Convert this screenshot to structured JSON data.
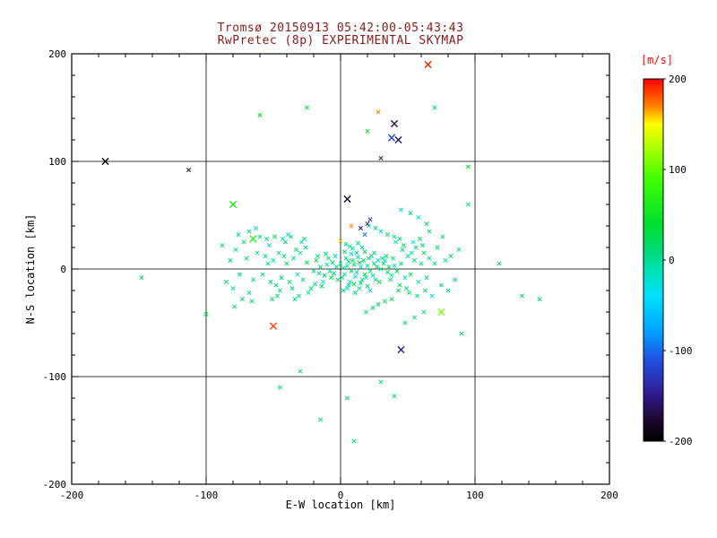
{
  "chart_data": {
    "type": "scatter",
    "title_line1": "Tromsø 20150913 05:42:00-05:43:43",
    "title_line2": "RwPretec (8p) EXPERIMENTAL SKYMAP",
    "title_color": "#8b1a1a",
    "xlabel": "E-W location [km]",
    "ylabel": "N-S location [km]",
    "xlim": [
      -200,
      200
    ],
    "ylim": [
      -200,
      200
    ],
    "xticks": [
      -200,
      -100,
      0,
      100,
      200
    ],
    "yticks": [
      -200,
      -100,
      0,
      100,
      200
    ],
    "minor_tick_step": 20,
    "grid_values": [
      -100,
      0,
      100
    ],
    "grid": true,
    "marker": "x",
    "value_units": "m/s",
    "colorbar": {
      "label": "[m/s]",
      "label_color": "#ff0000",
      "ticks": [
        200,
        100,
        0,
        -100,
        -200
      ],
      "range": [
        -200,
        200
      ],
      "stops": [
        [
          -200,
          "#000000"
        ],
        [
          -175,
          "#1c0830"
        ],
        [
          -150,
          "#30188c"
        ],
        [
          -110,
          "#2050e0"
        ],
        [
          -80,
          "#00a0ff"
        ],
        [
          -40,
          "#00e0ff"
        ],
        [
          -10,
          "#00e2b4"
        ],
        [
          10,
          "#00dc78"
        ],
        [
          40,
          "#00e030"
        ],
        [
          90,
          "#40ff00"
        ],
        [
          120,
          "#a0ff00"
        ],
        [
          150,
          "#ffff00"
        ],
        [
          170,
          "#ff8000"
        ],
        [
          200,
          "#ff0000"
        ]
      ]
    },
    "points": [
      [
        2,
        1,
        10
      ],
      [
        5,
        3,
        -5
      ],
      [
        8,
        -2,
        15
      ],
      [
        3,
        -5,
        0
      ],
      [
        10,
        4,
        20
      ],
      [
        12,
        -3,
        -10
      ],
      [
        6,
        7,
        5
      ],
      [
        1,
        -8,
        8
      ],
      [
        15,
        2,
        -15
      ],
      [
        18,
        -5,
        25
      ],
      [
        4,
        10,
        12
      ],
      [
        7,
        -12,
        -8
      ],
      [
        20,
        3,
        5
      ],
      [
        9,
        8,
        18
      ],
      [
        11,
        -7,
        -20
      ],
      [
        14,
        6,
        30
      ],
      [
        16,
        -10,
        10
      ],
      [
        0,
        5,
        -12
      ],
      [
        -3,
        2,
        6
      ],
      [
        -5,
        -4,
        14
      ],
      [
        22,
        -2,
        8
      ],
      [
        13,
        11,
        -5
      ],
      [
        17,
        8,
        22
      ],
      [
        19,
        -8,
        -14
      ],
      [
        25,
        5,
        16
      ],
      [
        6,
        -15,
        4
      ],
      [
        -2,
        -10,
        20
      ],
      [
        8,
        14,
        -18
      ],
      [
        3,
        16,
        10
      ],
      [
        21,
        10,
        6
      ],
      [
        24,
        -6,
        -9
      ],
      [
        10,
        -14,
        28
      ],
      [
        -6,
        6,
        15
      ],
      [
        -8,
        -2,
        -6
      ],
      [
        12,
        15,
        8
      ],
      [
        15,
        -13,
        12
      ],
      [
        5,
        -18,
        -22
      ],
      [
        27,
        2,
        18
      ],
      [
        23,
        12,
        4
      ],
      [
        26,
        -10,
        10
      ],
      [
        -4,
        12,
        -16
      ],
      [
        -7,
        -8,
        24
      ],
      [
        30,
        0,
        6
      ],
      [
        28,
        8,
        -12
      ],
      [
        2,
        -20,
        14
      ],
      [
        18,
        16,
        20
      ],
      [
        -10,
        4,
        -4
      ],
      [
        -12,
        -6,
        18
      ],
      [
        32,
        5,
        12
      ],
      [
        9,
        19,
        -8
      ],
      [
        35,
        -3,
        16
      ],
      [
        14,
        -18,
        6
      ],
      [
        -9,
        10,
        22
      ],
      [
        -13,
        -12,
        -14
      ],
      [
        31,
        10,
        8
      ],
      [
        29,
        -12,
        20
      ],
      [
        -15,
        2,
        10
      ],
      [
        7,
        21,
        -6
      ],
      [
        20,
        -16,
        14
      ],
      [
        33,
        8,
        -18
      ],
      [
        -11,
        14,
        12
      ],
      [
        36,
        2,
        24
      ],
      [
        4,
        23,
        8
      ],
      [
        -14,
        -16,
        16
      ],
      [
        38,
        -6,
        -10
      ],
      [
        25,
        15,
        18
      ],
      [
        -16,
        -4,
        6
      ],
      [
        11,
        -22,
        12
      ],
      [
        40,
        3,
        -14
      ],
      [
        34,
        12,
        10
      ],
      [
        -18,
        8,
        20
      ],
      [
        16,
        20,
        -4
      ],
      [
        37,
        -10,
        14
      ],
      [
        -20,
        -2,
        8
      ],
      [
        42,
        -2,
        18
      ],
      [
        22,
        -20,
        -12
      ],
      [
        -17,
        12,
        6
      ],
      [
        39,
        10,
        22
      ],
      [
        13,
        24,
        16
      ],
      [
        -19,
        -14,
        -8
      ],
      [
        45,
        5,
        10
      ],
      [
        48,
        -8,
        -15
      ],
      [
        -25,
        6,
        20
      ],
      [
        -28,
        -10,
        12
      ],
      [
        50,
        12,
        8
      ],
      [
        44,
        -15,
        25
      ],
      [
        -30,
        15,
        -10
      ],
      [
        -22,
        -18,
        18
      ],
      [
        52,
        -5,
        14
      ],
      [
        46,
        18,
        6
      ],
      [
        -32,
        -5,
        -20
      ],
      [
        -26,
        20,
        10
      ],
      [
        55,
        8,
        16
      ],
      [
        43,
        -20,
        12
      ],
      [
        -35,
        10,
        8
      ],
      [
        -24,
        -22,
        -14
      ],
      [
        47,
        22,
        20
      ],
      [
        -38,
        -12,
        16
      ],
      [
        41,
        25,
        -6
      ],
      [
        -40,
        5,
        12
      ],
      [
        49,
        -18,
        8
      ],
      [
        -33,
        18,
        24
      ],
      [
        53,
        15,
        -12
      ],
      [
        -36,
        -18,
        10
      ],
      [
        44,
        28,
        14
      ],
      [
        -42,
        12,
        6
      ],
      [
        51,
        -22,
        18
      ],
      [
        -29,
        25,
        -16
      ],
      [
        56,
        20,
        10
      ],
      [
        -44,
        -8,
        20
      ],
      [
        40,
        30,
        12
      ],
      [
        -31,
        -25,
        8
      ],
      [
        58,
        -12,
        -10
      ],
      [
        -46,
        15,
        14
      ],
      [
        38,
        -28,
        22
      ],
      [
        -27,
        28,
        6
      ],
      [
        54,
        25,
        -18
      ],
      [
        -48,
        -15,
        12
      ],
      [
        35,
        32,
        16
      ],
      [
        -34,
        -28,
        10
      ],
      [
        60,
        5,
        8
      ],
      [
        -50,
        8,
        -12
      ],
      [
        33,
        -30,
        20
      ],
      [
        -37,
        30,
        14
      ],
      [
        57,
        -25,
        6
      ],
      [
        -52,
        -12,
        18
      ],
      [
        30,
        35,
        -8
      ],
      [
        -41,
        25,
        12
      ],
      [
        62,
        15,
        24
      ],
      [
        -45,
        -20,
        8
      ],
      [
        28,
        -33,
        14
      ],
      [
        -39,
        32,
        -10
      ],
      [
        59,
        28,
        16
      ],
      [
        -54,
        5,
        10
      ],
      [
        26,
        38,
        20
      ],
      [
        -47,
        -25,
        6
      ],
      [
        64,
        -8,
        12
      ],
      [
        -43,
        28,
        -14
      ],
      [
        24,
        -36,
        18
      ],
      [
        -56,
        12,
        8
      ],
      [
        61,
        22,
        10
      ],
      [
        -49,
        30,
        22
      ],
      [
        21,
        40,
        -6
      ],
      [
        -51,
        -28,
        14
      ],
      [
        66,
        10,
        16
      ],
      [
        -58,
        -5,
        12
      ],
      [
        19,
        -40,
        8
      ],
      [
        -53,
        22,
        -18
      ],
      [
        63,
        -20,
        20
      ],
      [
        -55,
        28,
        10
      ],
      [
        70,
        5,
        12
      ],
      [
        -62,
        15,
        8
      ],
      [
        68,
        -25,
        -14
      ],
      [
        -65,
        -10,
        18
      ],
      [
        72,
        20,
        10
      ],
      [
        -60,
        30,
        6
      ],
      [
        66,
        35,
        22
      ],
      [
        -68,
        -22,
        12
      ],
      [
        75,
        -15,
        8
      ],
      [
        -63,
        38,
        -10
      ],
      [
        64,
        42,
        16
      ],
      [
        -70,
        10,
        14
      ],
      [
        78,
        8,
        -6
      ],
      [
        -66,
        -30,
        20
      ],
      [
        62,
        -40,
        10
      ],
      [
        -72,
        25,
        8
      ],
      [
        80,
        -20,
        14
      ],
      [
        -75,
        -5,
        12
      ],
      [
        58,
        48,
        -16
      ],
      [
        -68,
        35,
        6
      ],
      [
        82,
        12,
        18
      ],
      [
        -78,
        18,
        10
      ],
      [
        55,
        -45,
        8
      ],
      [
        -80,
        -18,
        -12
      ],
      [
        76,
        30,
        14
      ],
      [
        -73,
        -28,
        16
      ],
      [
        52,
        52,
        10
      ],
      [
        -82,
        8,
        20
      ],
      [
        85,
        -10,
        6
      ],
      [
        -76,
        32,
        -8
      ],
      [
        48,
        -50,
        12
      ],
      [
        -85,
        -12,
        14
      ],
      [
        88,
        18,
        8
      ],
      [
        -79,
        -35,
        10
      ],
      [
        45,
        55,
        -14
      ],
      [
        -88,
        22,
        18
      ],
      [
        65,
        190,
        195,
        2
      ],
      [
        40,
        135,
        -170,
        2
      ],
      [
        43,
        120,
        -160,
        2
      ],
      [
        38,
        122,
        -120,
        2
      ],
      [
        28,
        146,
        170
      ],
      [
        30,
        103,
        -155
      ],
      [
        -175,
        100,
        -190,
        2
      ],
      [
        -113,
        92,
        -185
      ],
      [
        -80,
        60,
        60,
        2
      ],
      [
        -65,
        28,
        70,
        2
      ],
      [
        -50,
        -53,
        185,
        2
      ],
      [
        75,
        -40,
        110,
        2
      ],
      [
        45,
        -75,
        -150,
        2
      ],
      [
        5,
        65,
        -180,
        2
      ],
      [
        15,
        38,
        -165
      ],
      [
        20,
        42,
        -140
      ],
      [
        8,
        40,
        170
      ],
      [
        18,
        32,
        -100
      ],
      [
        22,
        46,
        -130
      ],
      [
        0,
        26,
        160
      ],
      [
        118,
        5,
        20
      ],
      [
        135,
        -25,
        10
      ],
      [
        148,
        -28,
        15
      ],
      [
        95,
        60,
        8
      ],
      [
        90,
        -60,
        12
      ],
      [
        95,
        95,
        40
      ],
      [
        10,
        -160,
        14
      ],
      [
        -15,
        -140,
        10
      ],
      [
        5,
        -120,
        18
      ],
      [
        30,
        -105,
        8
      ],
      [
        -30,
        -95,
        16
      ],
      [
        40,
        -118,
        10
      ],
      [
        -45,
        -110,
        12
      ],
      [
        -100,
        -42,
        30
      ],
      [
        -148,
        -8,
        12
      ],
      [
        -60,
        143,
        45
      ],
      [
        -25,
        150,
        35
      ],
      [
        20,
        128,
        50
      ],
      [
        70,
        150,
        28
      ]
    ]
  }
}
